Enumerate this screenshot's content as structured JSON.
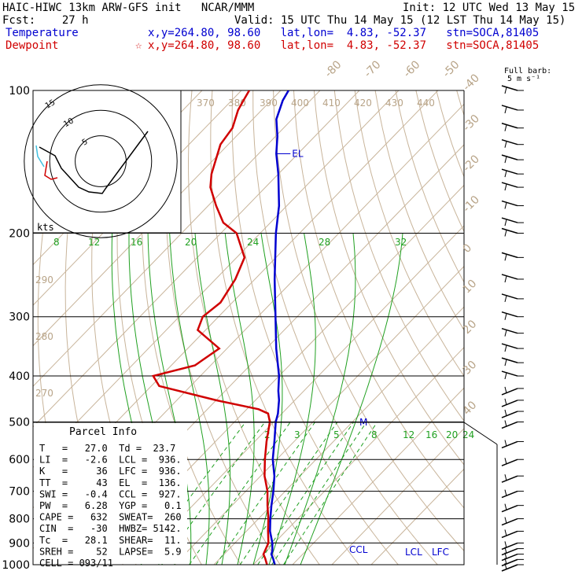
{
  "header": {
    "line1_left": "HAIC-HIWC 13km ARW-GFS init   NCAR/MMM",
    "line1_right": "Init: 12 UTC Wed 13 May 15",
    "line2_left": "Fcst:    27 h",
    "line2_right": "Valid: 15 UTC Thu 14 May 15 (12 LST Thu 14 May 15)",
    "temp_label": "Temperature",
    "temp_info": "x,y=264.80, 98.60   lat,lon=  4.83, -52.37   stn=SOCA,81405",
    "dew_label": "Dewpoint",
    "dew_info": "x,y=264.80, 98.60   lat,lon=  4.83, -52.37   stn=SOCA,81405",
    "dew_marker": "☆"
  },
  "barb_legend": {
    "line1": "Full barb:",
    "line2": "5 m s⁻¹"
  },
  "hodograph": {
    "units": "kts",
    "rings": [
      "5",
      "10",
      "15"
    ]
  },
  "parcel": {
    "title": "Parcel Info",
    "rows": [
      "T   =   27.0  Td =  23.7",
      "LI  =   -2.6  LCL =  936.",
      "K   =     36  LFC =  936.",
      "TT  =     43  EL  =  136.",
      "SWI =   -0.4  CCL =  927.",
      "PW  =   6.28  YGP =   0.1",
      "CAPE =   632  SWEAT=  260",
      "CIN  =   -30  HWBZ= 5142.",
      "Tc  =   28.1  SHEAR=  11.",
      "SREH =    52  LAPSE=  5.9",
      "CELL = 093/11"
    ]
  },
  "chart_data": {
    "type": "line",
    "title": "Skew-T log-P sounding",
    "y_axis": {
      "scale": "log",
      "range": [
        1000,
        100
      ],
      "tick_labels": [
        "100",
        "200",
        "300",
        "400",
        "500",
        "600",
        "700",
        "800",
        "900",
        "1000"
      ]
    },
    "isotherm_labels": [
      "-80",
      "-70",
      "-60",
      "-50",
      "-40",
      "-30",
      "-20",
      "-10",
      "0",
      "10",
      "20",
      "30",
      "40"
    ],
    "theta_labels": [
      "370",
      "380",
      "390",
      "400",
      "410",
      "420",
      "430",
      "440"
    ],
    "theta_labels_left": [
      "290",
      "280",
      "270"
    ],
    "theta_e_labels": [
      "8",
      "12",
      "16",
      "20",
      "24",
      "28",
      "32"
    ],
    "mixing_ratio_labels": [
      "2",
      "3",
      "5",
      "8",
      "12",
      "16",
      "20",
      "24"
    ],
    "annotations": {
      "el": "EL",
      "ccl": "CCL",
      "lcl": "LCL",
      "lfc": "LFC",
      "m": "M"
    },
    "series": [
      {
        "name": "Temperature",
        "color": "#0000d0",
        "p": [
          1000,
          970,
          950,
          936,
          900,
          850,
          800,
          750,
          700,
          650,
          600,
          550,
          500,
          480,
          460,
          450,
          430,
          400,
          350,
          300,
          250,
          200,
          175,
          150,
          136,
          125,
          115,
          105,
          100
        ],
        "t": [
          25.5,
          23.5,
          22.0,
          21.5,
          19.5,
          16.0,
          13.0,
          10.0,
          7.0,
          3.5,
          -1.0,
          -5.0,
          -9.5,
          -11.0,
          -13.0,
          -14.0,
          -16.5,
          -20.0,
          -27.5,
          -35.5,
          -45.0,
          -56.0,
          -62.0,
          -70.0,
          -75.5,
          -79.5,
          -84.0,
          -87.0,
          -88.0
        ]
      },
      {
        "name": "Dewpoint",
        "color": "#d00000",
        "p": [
          1000,
          970,
          950,
          900,
          850,
          800,
          750,
          700,
          650,
          600,
          550,
          500,
          480,
          470,
          450,
          420,
          400,
          380,
          350,
          320,
          300,
          280,
          250,
          225,
          200,
          190,
          175,
          160,
          150,
          130,
          120,
          110,
          105,
          100
        ],
        "t": [
          23.5,
          21.5,
          20.0,
          18.5,
          15.5,
          12.5,
          9.0,
          5.5,
          1.0,
          -3.0,
          -7.0,
          -11.0,
          -13.5,
          -17.0,
          -30.0,
          -48.0,
          -52.0,
          -44.0,
          -42.0,
          -52.0,
          -54.0,
          -53.0,
          -55.0,
          -58.0,
          -66.0,
          -72.0,
          -78.0,
          -84.0,
          -87.0,
          -92.0,
          -93.0,
          -96.0,
          -97.0,
          -98.0
        ]
      }
    ],
    "hodograph_points": [
      [
        -22,
        6
      ],
      [
        -18,
        0
      ],
      [
        -10,
        -6
      ],
      [
        -4,
        -14
      ],
      [
        -6,
        -14
      ],
      [
        8,
        6
      ],
      [
        12,
        4
      ],
      [
        16,
        8
      ]
    ],
    "wind_barb_pressures": [
      100,
      110,
      120,
      130,
      140,
      150,
      160,
      175,
      190,
      200,
      225,
      250,
      275,
      300,
      325,
      350,
      375,
      400,
      425,
      450,
      475,
      500,
      550,
      600,
      650,
      700,
      750,
      800,
      850,
      900,
      925,
      950,
      975,
      1000
    ]
  }
}
